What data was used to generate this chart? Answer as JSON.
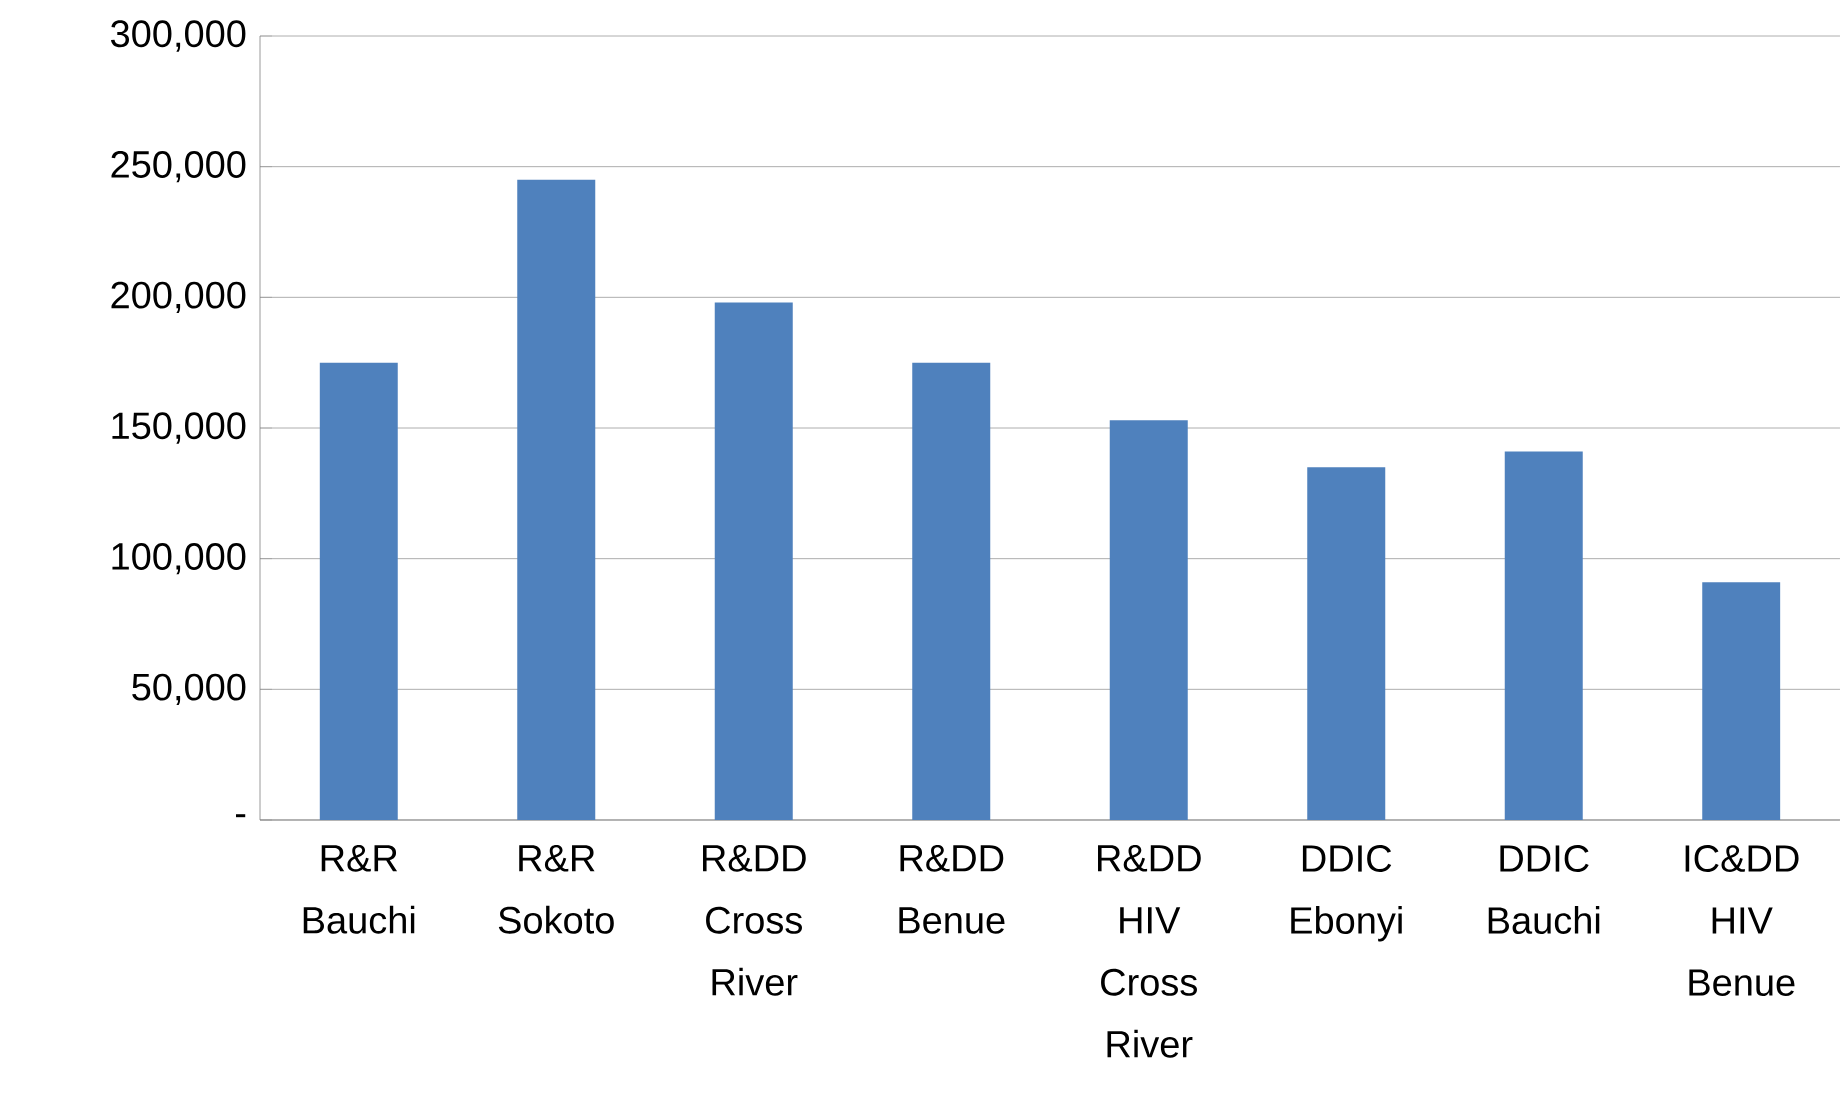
{
  "chart_data": {
    "type": "bar",
    "categories": [
      "R&R Bauchi",
      "R&R Sokoto",
      "R&DD Cross River",
      "R&DD Benue",
      "R&DD HIV Cross River",
      "DDIC Ebonyi",
      "DDIC Bauchi",
      "IC&DD HIV Benue"
    ],
    "values": [
      175000,
      245000,
      198000,
      175000,
      153000,
      135000,
      141000,
      91000
    ],
    "color": "#4f81bd",
    "ylim": [
      0,
      300000
    ],
    "yticks": [
      {
        "value": 0,
        "label": "-"
      },
      {
        "value": 50000,
        "label": "50,000"
      },
      {
        "value": 100000,
        "label": "100,000"
      },
      {
        "value": 150000,
        "label": "150,000"
      },
      {
        "value": 200000,
        "label": "200,000"
      },
      {
        "value": 250000,
        "label": "250,000"
      },
      {
        "value": 300000,
        "label": "300,000"
      }
    ],
    "grid": "y"
  }
}
